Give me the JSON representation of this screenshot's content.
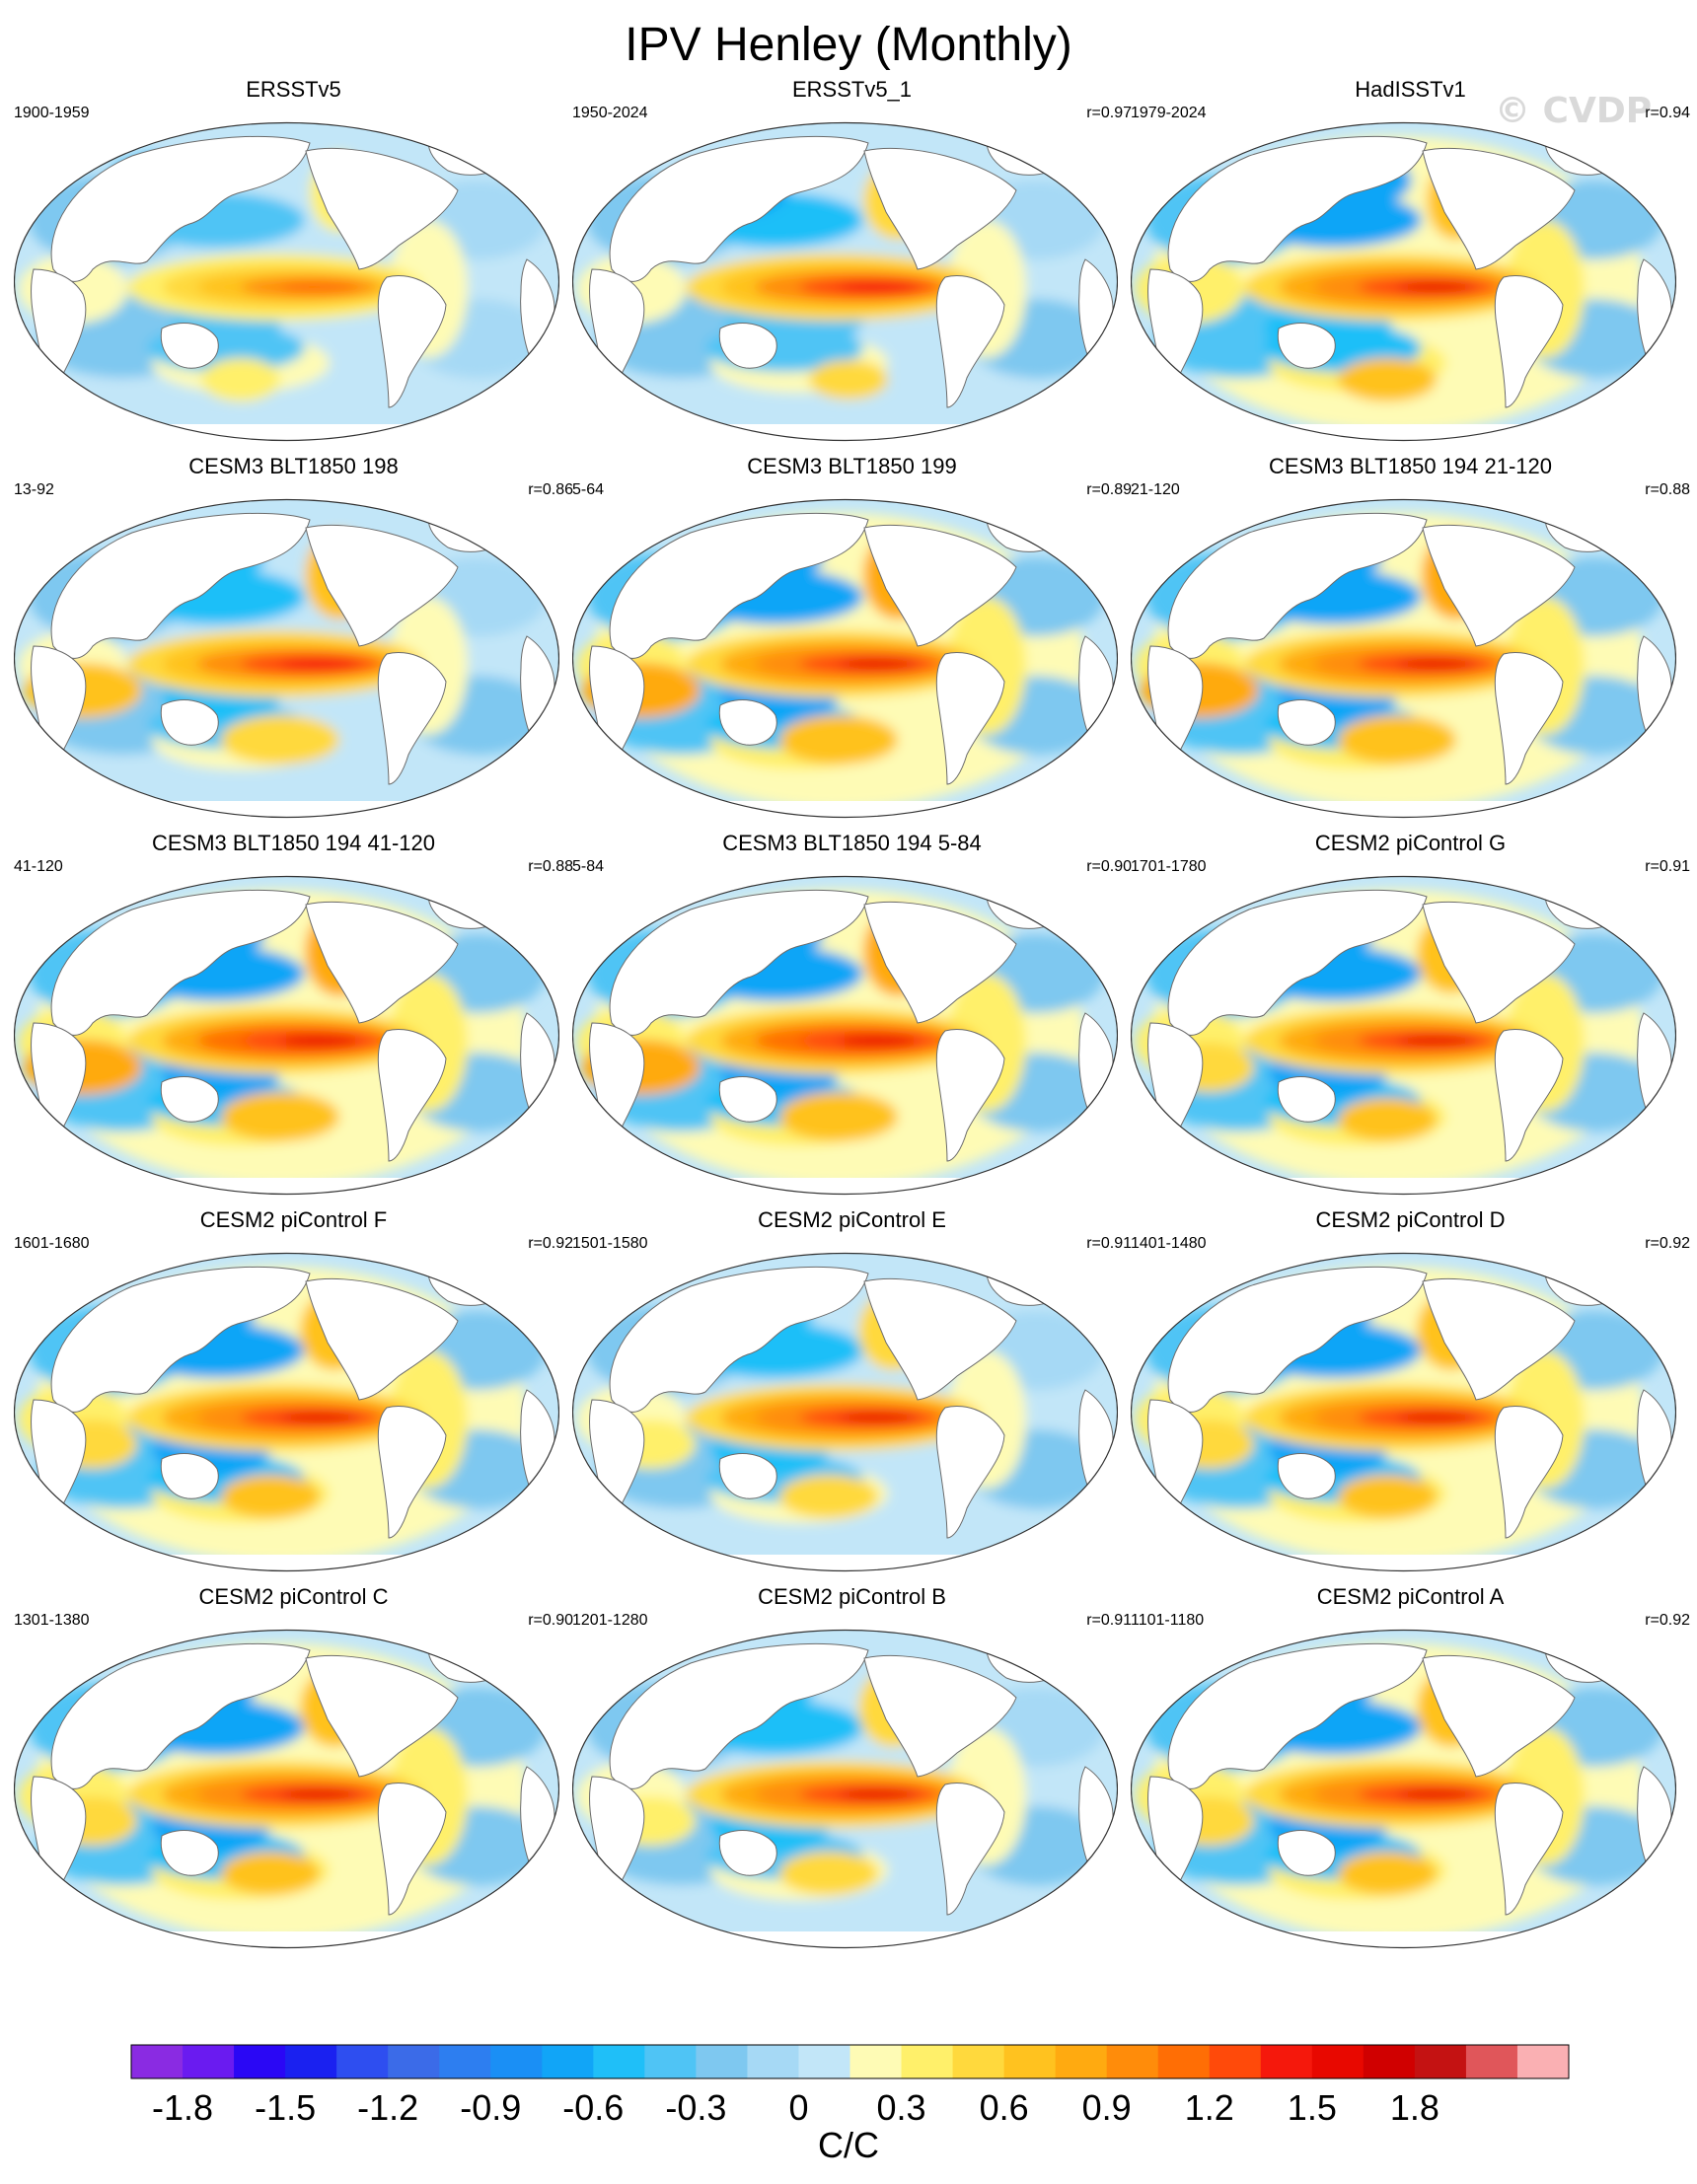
{
  "title": "IPV Henley (Monthly)",
  "watermark": "© CVDP",
  "panels": [
    {
      "title": "ERSSTv5",
      "period": "1900-1959",
      "r": "",
      "strength": 0.62,
      "pattern": "obs1"
    },
    {
      "title": "ERSSTv5_1",
      "period": "1950-2024",
      "r": "r=0.97",
      "strength": 0.8,
      "pattern": "obs2"
    },
    {
      "title": "HadISSTv1",
      "period": "1979-2024",
      "r": "r=0.94",
      "strength": 0.86,
      "pattern": "obs3"
    },
    {
      "title": "CESM3 BLT1850 198",
      "period": "13-92",
      "r": "r=0.86",
      "strength": 0.82,
      "pattern": "cesm3"
    },
    {
      "title": "CESM3 BLT1850 199",
      "period": "5-64",
      "r": "r=0.89",
      "strength": 0.86,
      "pattern": "cesm3"
    },
    {
      "title": "CESM3 BLT1850 194 21-120",
      "period": "21-120",
      "r": "r=0.88",
      "strength": 0.86,
      "pattern": "cesm3"
    },
    {
      "title": "CESM3 BLT1850 194 41-120",
      "period": "41-120",
      "r": "r=0.88",
      "strength": 0.88,
      "pattern": "cesm3"
    },
    {
      "title": "CESM3 BLT1850 194 5-84",
      "period": "5-84",
      "r": "r=0.90",
      "strength": 0.88,
      "pattern": "cesm3"
    },
    {
      "title": "CESM2 piControl G",
      "period": "1701-1780",
      "r": "r=0.91",
      "strength": 0.86,
      "pattern": "cesm2"
    },
    {
      "title": "CESM2 piControl F",
      "period": "1601-1680",
      "r": "r=0.92",
      "strength": 0.86,
      "pattern": "cesm2"
    },
    {
      "title": "CESM2 piControl E",
      "period": "1501-1580",
      "r": "r=0.91",
      "strength": 0.84,
      "pattern": "cesm2"
    },
    {
      "title": "CESM2 piControl D",
      "period": "1401-1480",
      "r": "r=0.92",
      "strength": 0.86,
      "pattern": "cesm2"
    },
    {
      "title": "CESM2 piControl C",
      "period": "1301-1380",
      "r": "r=0.90",
      "strength": 0.86,
      "pattern": "cesm2"
    },
    {
      "title": "CESM2 piControl B",
      "period": "1201-1280",
      "r": "r=0.91",
      "strength": 0.84,
      "pattern": "cesm2"
    },
    {
      "title": "CESM2 piControl A",
      "period": "1101-1180",
      "r": "r=0.92",
      "strength": 0.86,
      "pattern": "cesm2"
    }
  ],
  "colorbar": {
    "label": "C/C",
    "levels": [
      -2.0,
      -1.8,
      -1.65,
      -1.5,
      -1.35,
      -1.2,
      -1.05,
      -0.9,
      -0.75,
      -0.6,
      -0.45,
      -0.3,
      -0.15,
      0.0,
      0.15,
      0.3,
      0.45,
      0.6,
      0.75,
      0.9,
      1.05,
      1.2,
      1.35,
      1.5,
      1.65,
      1.8,
      1.95,
      2.1
    ],
    "colors": [
      "#8a2be2",
      "#6a1bf0",
      "#2a07f5",
      "#1a21f0",
      "#2e4ef0",
      "#3b6be8",
      "#2d7ef0",
      "#1a8ff5",
      "#11a5f7",
      "#1fbff8",
      "#4fc4f5",
      "#7ec8f0",
      "#a6d9f5",
      "#c2e6f8",
      "#fefbb5",
      "#fff06a",
      "#ffd93d",
      "#ffc21f",
      "#ffaa10",
      "#ff8c0a",
      "#ff6e05",
      "#ff4a0a",
      "#f5180c",
      "#e80800",
      "#d00000",
      "#c41212",
      "#e0565a",
      "#fab0b3"
    ],
    "ticks": [
      "-1.8",
      "-1.5",
      "-1.2",
      "-0.9",
      "-0.6",
      "-0.3",
      "0",
      "0.3",
      "0.6",
      "0.9",
      "1.2",
      "1.5",
      "1.8"
    ],
    "tick_values": [
      -1.8,
      -1.5,
      -1.2,
      -0.9,
      -0.6,
      -0.3,
      0,
      0.3,
      0.6,
      0.9,
      1.2,
      1.5,
      1.8
    ]
  }
}
